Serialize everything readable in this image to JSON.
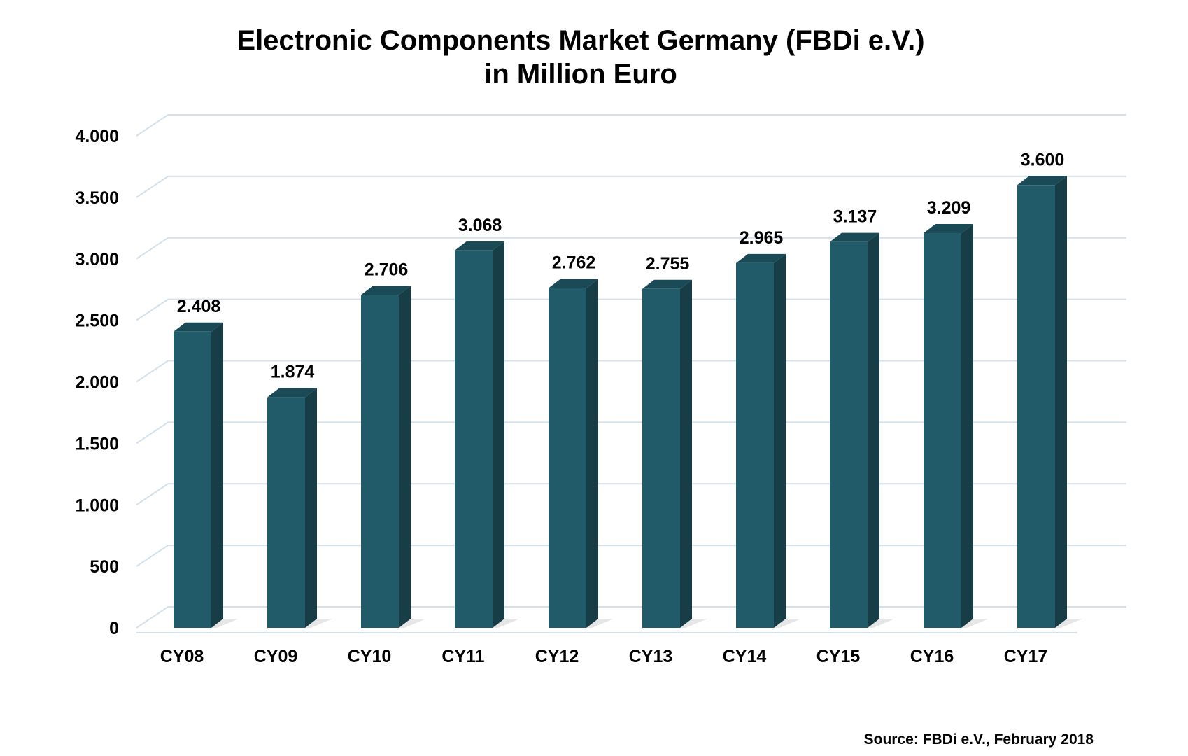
{
  "title": {
    "line1": "Electronic Components Market Germany (FBDi e.V.)",
    "line2": "in Million Euro"
  },
  "source": "Source: FBDi e.V., February 2018",
  "chart_data": {
    "type": "bar",
    "title": "Electronic Components Market Germany (FBDi e.V.) in Million Euro",
    "categories": [
      "CY08",
      "CY09",
      "CY10",
      "CY11",
      "CY12",
      "CY13",
      "CY14",
      "CY15",
      "CY16",
      "CY17"
    ],
    "values": [
      2408,
      1874,
      2706,
      3068,
      2762,
      2755,
      2965,
      3137,
      3209,
      3600
    ],
    "value_labels": [
      "2.408",
      "1.874",
      "2.706",
      "3.068",
      "2.762",
      "2.755",
      "2.965",
      "3.137",
      "3.209",
      "3.600"
    ],
    "yticks": [
      0,
      500,
      1000,
      1500,
      2000,
      2500,
      3000,
      3500,
      4000
    ],
    "ytick_labels": [
      "0",
      "500",
      "1.000",
      "1.500",
      "2.000",
      "2.500",
      "3.000",
      "3.500",
      "4.000"
    ],
    "ylim": [
      0,
      4000
    ],
    "grid": true,
    "three_d": true,
    "colors": {
      "bar_front": "#215a68",
      "bar_side": "#173d47",
      "bar_top": "#1a4a55",
      "grid": "#d3e1ec"
    }
  }
}
